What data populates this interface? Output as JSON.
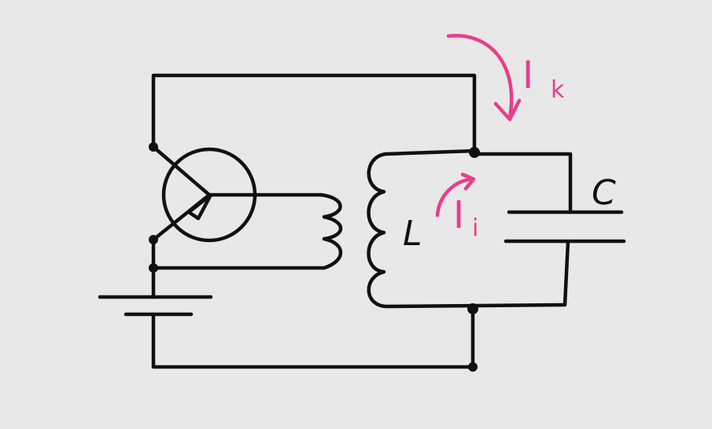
{
  "labels": {
    "inductor": "L",
    "capacitor": "C",
    "collector_current_main": "I",
    "collector_current_sub": "k",
    "loop_current_main": "I",
    "loop_current_sub": "i"
  },
  "colors": {
    "background": "#e8e8e8",
    "wire": "#111111",
    "current_annotation": "#e83e8c"
  }
}
